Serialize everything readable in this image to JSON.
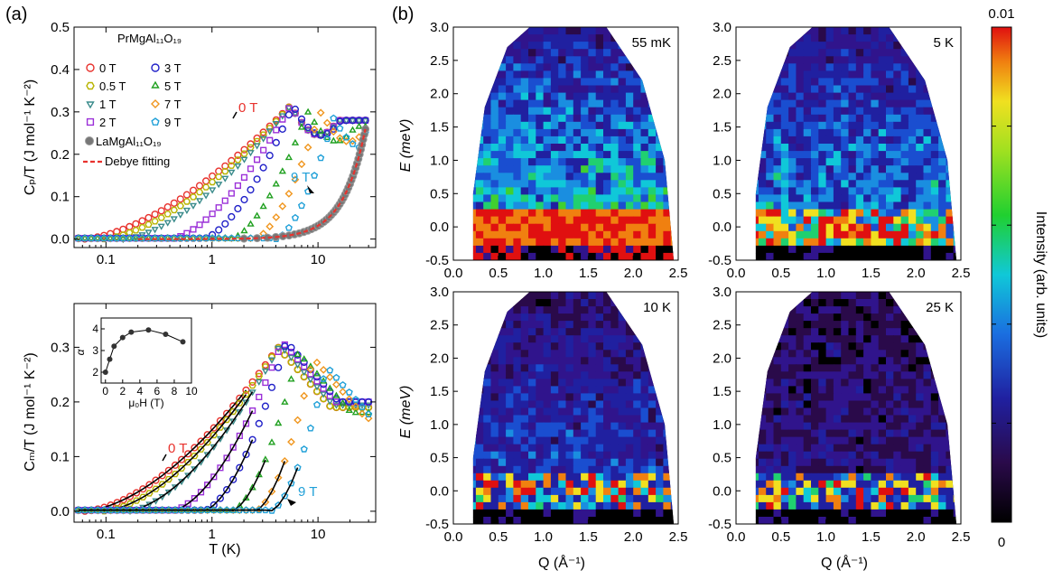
{
  "panel_labels": {
    "a": "(a)",
    "b": "(b)"
  },
  "colors": {
    "0 T": "#e8322d",
    "0.5 T": "#b8b400",
    "1 T": "#3a8b8b",
    "2 T": "#9b30d8",
    "3 T": "#2020c8",
    "5 T": "#20a020",
    "7 T": "#f0961e",
    "9 T": "#20a0d8",
    "La": "#777777",
    "debye": "#e8322d",
    "fit": "#000000"
  },
  "panel_a_top": {
    "ylabel": "Cₚ/T (J mol⁻¹ K⁻²)",
    "xlim": [
      0.05,
      35
    ],
    "ylim": [
      -0.02,
      0.5
    ],
    "x_ticks": [
      {
        "v": 0.1,
        "t": "0.1"
      },
      {
        "v": 1,
        "t": "1"
      },
      {
        "v": 10,
        "t": "10"
      }
    ],
    "y_ticks": [
      {
        "v": 0.0,
        "t": "0.0"
      },
      {
        "v": 0.1,
        "t": "0.1"
      },
      {
        "v": 0.2,
        "t": "0.2"
      },
      {
        "v": 0.3,
        "t": "0.3"
      },
      {
        "v": 0.4,
        "t": "0.4"
      },
      {
        "v": 0.5,
        "t": "0.5"
      }
    ],
    "legend_title": "PrMgAl₁₁O₁₉",
    "legend": [
      {
        "label": "0 T",
        "key": "0 T",
        "shape": "circle"
      },
      {
        "label": "0.5 T",
        "key": "0.5 T",
        "shape": "hexagon"
      },
      {
        "label": "1 T",
        "key": "1 T",
        "shape": "triangle-down"
      },
      {
        "label": "2 T",
        "key": "2 T",
        "shape": "square"
      },
      {
        "label": "3 T",
        "key": "3 T",
        "shape": "circle"
      },
      {
        "label": "5 T",
        "key": "5 T",
        "shape": "triangle-up"
      },
      {
        "label": "7 T",
        "key": "7 T",
        "shape": "diamond"
      },
      {
        "label": "9 T",
        "key": "9 T",
        "shape": "pentagon"
      }
    ],
    "legend_la": "LaMgAl₁₁O₁₉",
    "legend_debye": "Debye fitting",
    "annotations": {
      "zero": "0 T",
      "nine": "9 T"
    }
  },
  "panel_a_bottom": {
    "xlabel": "T (K)",
    "ylabel": "Cₘ/T (J mol⁻¹ K⁻²)",
    "xlim": [
      0.05,
      35
    ],
    "ylim": [
      -0.02,
      0.38
    ],
    "x_ticks": [
      {
        "v": 0.1,
        "t": "0.1"
      },
      {
        "v": 1,
        "t": "1"
      },
      {
        "v": 10,
        "t": "10"
      }
    ],
    "y_ticks": [
      {
        "v": 0.0,
        "t": "0.0"
      },
      {
        "v": 0.1,
        "t": "0.1"
      },
      {
        "v": 0.2,
        "t": "0.2"
      },
      {
        "v": 0.3,
        "t": "0.3"
      }
    ],
    "annotations": {
      "zero": "0 T",
      "nine": "9 T"
    },
    "inset": {
      "xlabel": "μ₀H (T)",
      "ylabel": "α",
      "xlim": [
        -0.5,
        10
      ],
      "ylim": [
        1.5,
        4.5
      ],
      "x_ticks": [
        {
          "v": 0,
          "t": "0"
        },
        {
          "v": 2,
          "t": "2"
        },
        {
          "v": 4,
          "t": "4"
        },
        {
          "v": 6,
          "t": "6"
        },
        {
          "v": 8,
          "t": "8"
        },
        {
          "v": 10,
          "t": "10"
        }
      ],
      "y_ticks": [
        {
          "v": 2,
          "t": "2"
        },
        {
          "v": 3,
          "t": "3"
        },
        {
          "v": 4,
          "t": "4"
        }
      ],
      "points": [
        [
          0,
          2.0
        ],
        [
          0.5,
          2.6
        ],
        [
          1,
          3.2
        ],
        [
          2,
          3.6
        ],
        [
          3,
          3.85
        ],
        [
          5,
          3.95
        ],
        [
          7,
          3.75
        ],
        [
          9,
          3.4
        ]
      ]
    }
  },
  "panel_b": {
    "xlabel": "Q (Å⁻¹)",
    "ylabel": "E (meV)",
    "xlim": [
      0.0,
      2.5
    ],
    "ylim": [
      -0.5,
      3.0
    ],
    "x_ticks": [
      {
        "v": 0.0,
        "t": "0.0"
      },
      {
        "v": 0.5,
        "t": "0.5"
      },
      {
        "v": 1.0,
        "t": "1.0"
      },
      {
        "v": 1.5,
        "t": "1.5"
      },
      {
        "v": 2.0,
        "t": "2.0"
      },
      {
        "v": 2.5,
        "t": "2.5"
      }
    ],
    "y_ticks": [
      {
        "v": -0.5,
        "t": "-0.5"
      },
      {
        "v": 0.0,
        "t": "0.0"
      },
      {
        "v": 0.5,
        "t": "0.5"
      },
      {
        "v": 1.0,
        "t": "1.0"
      },
      {
        "v": 1.5,
        "t": "1.5"
      },
      {
        "v": 2.0,
        "t": "2.0"
      },
      {
        "v": 2.5,
        "t": "2.5"
      },
      {
        "v": 3.0,
        "t": "3.0"
      }
    ],
    "maps": [
      {
        "temp": "55 mK",
        "level": 0.55
      },
      {
        "temp": "5 K",
        "level": 0.45
      },
      {
        "temp": "10 K",
        "level": 0.3
      },
      {
        "temp": "25 K",
        "level": 0.15
      }
    ],
    "colorbar": {
      "max": "0.01",
      "min": "0",
      "label": "Intensity (arb. units)"
    }
  },
  "chart_data": [
    {
      "type": "scatter",
      "title": "",
      "xlabel": "",
      "ylabel": "Cp/T (J mol-1 K-2)",
      "xscale": "log",
      "xlim": [
        0.05,
        35
      ],
      "ylim": [
        -0.02,
        0.5
      ],
      "series": [
        {
          "name": "0 T",
          "Tpeak": 5.5,
          "ypeak": 0.315
        },
        {
          "name": "0.5 T",
          "Tpeak": 5.5,
          "ypeak": 0.315
        },
        {
          "name": "1 T",
          "Tpeak": 5.5,
          "ypeak": 0.315
        },
        {
          "name": "2 T",
          "Tpeak": 5.5,
          "ypeak": 0.315
        },
        {
          "name": "3 T",
          "Tpeak": 5.8,
          "ypeak": 0.315
        },
        {
          "name": "5 T",
          "Tpeak": 8.0,
          "ypeak": 0.3
        },
        {
          "name": "7 T",
          "Tpeak": 10.5,
          "ypeak": 0.3
        },
        {
          "name": "9 T",
          "Tpeak": 14.0,
          "ypeak": 0.285
        },
        {
          "name": "LaMgAl11O19",
          "x": [
            2,
            5,
            10,
            15,
            20,
            25,
            28
          ],
          "y": [
            0.0,
            0.005,
            0.025,
            0.07,
            0.13,
            0.2,
            0.25
          ]
        }
      ]
    },
    {
      "type": "scatter",
      "title": "",
      "xlabel": "T (K)",
      "ylabel": "Cm/T (J mol-1 K-2)",
      "xscale": "log",
      "xlim": [
        0.05,
        35
      ],
      "ylim": [
        -0.02,
        0.38
      ],
      "series": [
        {
          "name": "0 T",
          "Tpeak": 4.0,
          "ypeak": 0.3
        },
        {
          "name": "3 T",
          "Tpeak": 5.0,
          "ypeak": 0.31
        },
        {
          "name": "5 T",
          "Tpeak": 7.0,
          "ypeak": 0.29
        },
        {
          "name": "9 T",
          "Tpeak": 12.0,
          "ypeak": 0.27
        }
      ]
    },
    {
      "type": "scatter",
      "title": "",
      "xlabel": "μ0H (T)",
      "ylabel": "α",
      "x": [
        0,
        0.5,
        1,
        2,
        3,
        5,
        7,
        9
      ],
      "y": [
        2.0,
        2.6,
        3.2,
        3.6,
        3.85,
        3.95,
        3.75,
        3.4
      ]
    },
    {
      "type": "heatmap",
      "title": "",
      "xlabel": "Q (Å-1)",
      "ylabel": "E (meV)",
      "panels": [
        "55 mK",
        "5 K",
        "10 K",
        "25 K"
      ],
      "xlim": [
        0.0,
        2.5
      ],
      "ylim": [
        -0.5,
        3.0
      ],
      "colorbar_range": [
        0,
        0.01
      ]
    }
  ]
}
